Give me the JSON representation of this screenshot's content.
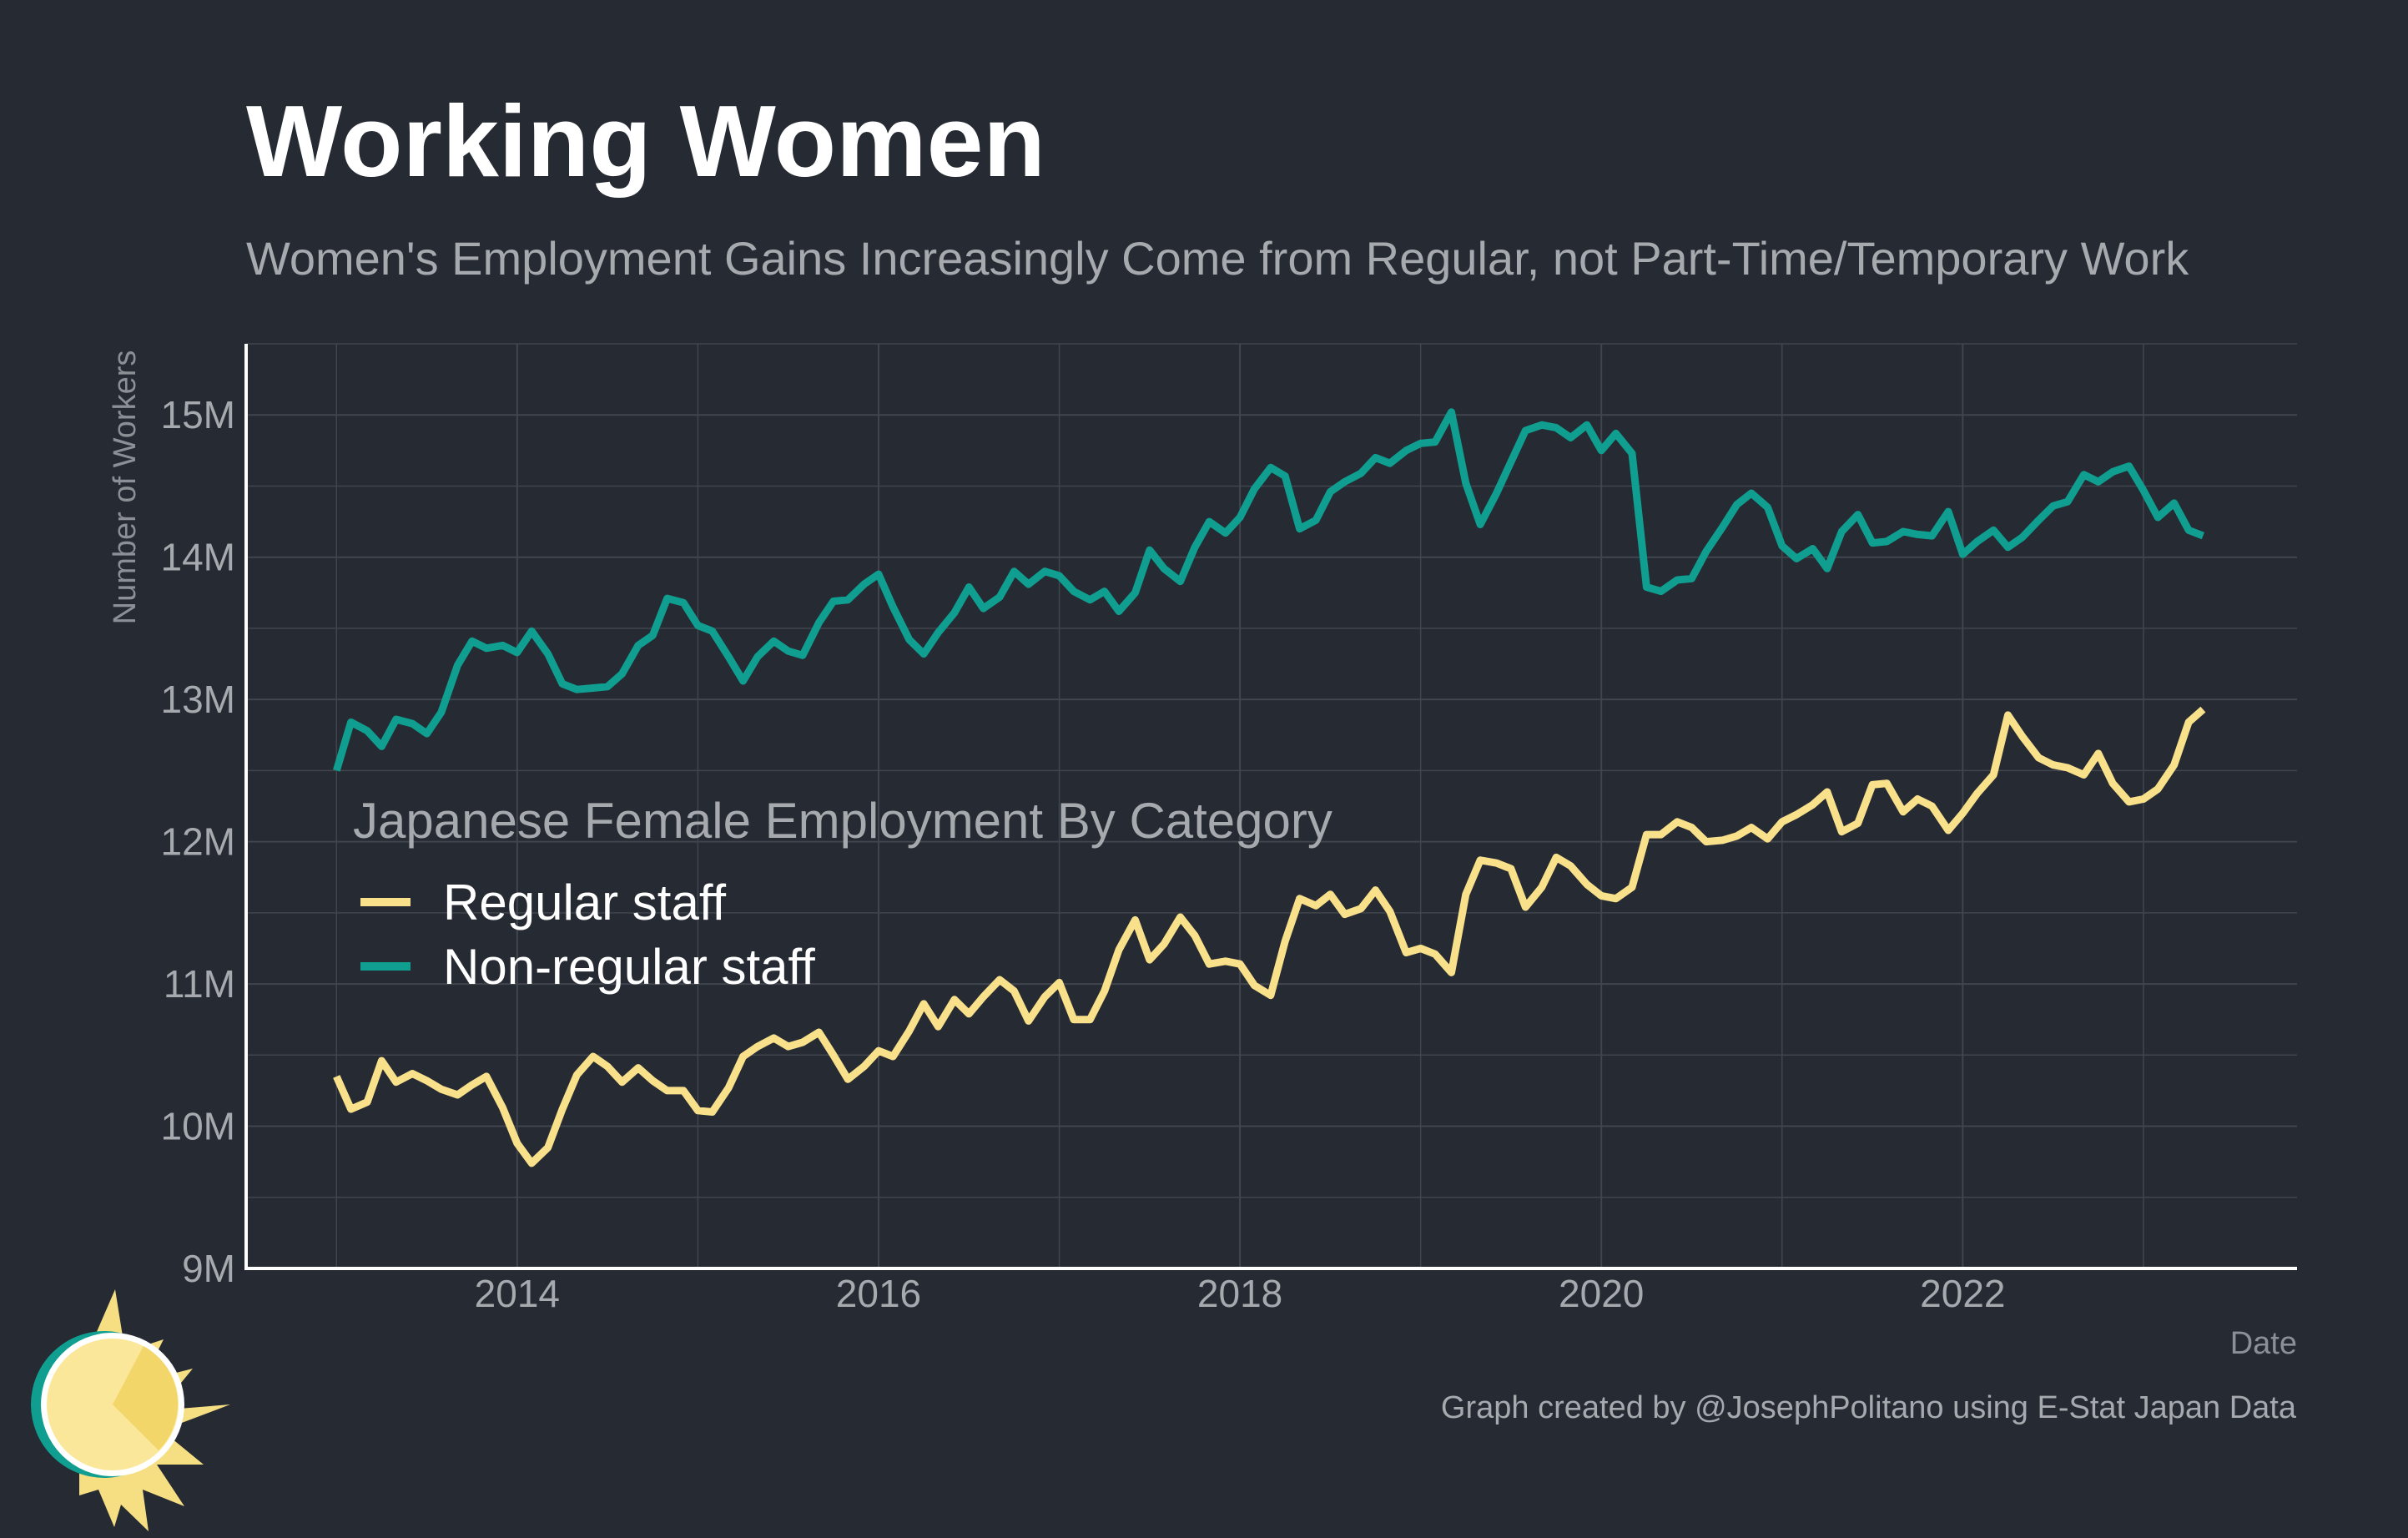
{
  "title": "Working Women",
  "subtitle": "Women's Employment Gains Increasingly Come from Regular, not Part-Time/Temporary Work",
  "caption": "Graph created by @JosephPolitano using E-Stat Japan Data",
  "colors": {
    "background": "#252a33",
    "regular": "#f9e08a",
    "nonregular": "#0f9e8f",
    "grid": "#41454d",
    "axis": "#ffffff"
  },
  "logo": "sun-logo-icon",
  "chart_data": {
    "type": "line",
    "xlabel": "Date",
    "ylabel": "Number of Workers",
    "xlim": [
      2012.5,
      2023.85
    ],
    "ylim": [
      9,
      15.5
    ],
    "x_ticks": [
      2014,
      2016,
      2018,
      2020,
      2022
    ],
    "x_tick_labels": [
      "2014",
      "2016",
      "2018",
      "2020",
      "2022"
    ],
    "y_ticks": [
      9,
      10,
      11,
      12,
      13,
      14,
      15
    ],
    "y_tick_labels": [
      "9M",
      "10M",
      "11M",
      "12M",
      "13M",
      "14M",
      "15M"
    ],
    "grid": true,
    "legend": {
      "title": "Japanese Female Employment By Category",
      "position": "center-left"
    },
    "series": [
      {
        "name": "Regular staff",
        "color": "#f9e08a",
        "points": [
          [
            2013.0,
            10.35
          ],
          [
            2013.08,
            10.12
          ],
          [
            2013.17,
            10.17
          ],
          [
            2013.25,
            10.46
          ],
          [
            2013.33,
            10.31
          ],
          [
            2013.42,
            10.37
          ],
          [
            2013.5,
            10.32
          ],
          [
            2013.58,
            10.26
          ],
          [
            2013.67,
            10.22
          ],
          [
            2013.75,
            10.29
          ],
          [
            2013.83,
            10.35
          ],
          [
            2013.92,
            10.13
          ],
          [
            2014.0,
            9.88
          ],
          [
            2014.08,
            9.74
          ],
          [
            2014.17,
            9.85
          ],
          [
            2014.25,
            10.12
          ],
          [
            2014.33,
            10.36
          ],
          [
            2014.42,
            10.49
          ],
          [
            2014.5,
            10.42
          ],
          [
            2014.58,
            10.31
          ],
          [
            2014.67,
            10.41
          ],
          [
            2014.75,
            10.32
          ],
          [
            2014.83,
            10.25
          ],
          [
            2014.92,
            10.25
          ],
          [
            2015.0,
            10.11
          ],
          [
            2015.08,
            10.1
          ],
          [
            2015.17,
            10.27
          ],
          [
            2015.25,
            10.49
          ],
          [
            2015.33,
            10.56
          ],
          [
            2015.42,
            10.62
          ],
          [
            2015.5,
            10.56
          ],
          [
            2015.58,
            10.59
          ],
          [
            2015.67,
            10.66
          ],
          [
            2015.75,
            10.5
          ],
          [
            2015.83,
            10.33
          ],
          [
            2015.92,
            10.42
          ],
          [
            2016.0,
            10.53
          ],
          [
            2016.08,
            10.49
          ],
          [
            2016.17,
            10.67
          ],
          [
            2016.25,
            10.86
          ],
          [
            2016.33,
            10.7
          ],
          [
            2016.42,
            10.89
          ],
          [
            2016.5,
            10.79
          ],
          [
            2016.58,
            10.91
          ],
          [
            2016.67,
            11.03
          ],
          [
            2016.75,
            10.95
          ],
          [
            2016.83,
            10.74
          ],
          [
            2016.92,
            10.91
          ],
          [
            2017.0,
            11.01
          ],
          [
            2017.08,
            10.75
          ],
          [
            2017.17,
            10.75
          ],
          [
            2017.25,
            10.95
          ],
          [
            2017.33,
            11.24
          ],
          [
            2017.42,
            11.45
          ],
          [
            2017.5,
            11.17
          ],
          [
            2017.58,
            11.28
          ],
          [
            2017.67,
            11.47
          ],
          [
            2017.75,
            11.34
          ],
          [
            2017.83,
            11.14
          ],
          [
            2017.92,
            11.16
          ],
          [
            2018.0,
            11.14
          ],
          [
            2018.08,
            10.99
          ],
          [
            2018.17,
            10.92
          ],
          [
            2018.25,
            11.3
          ],
          [
            2018.33,
            11.6
          ],
          [
            2018.42,
            11.55
          ],
          [
            2018.5,
            11.63
          ],
          [
            2018.58,
            11.49
          ],
          [
            2018.67,
            11.53
          ],
          [
            2018.75,
            11.66
          ],
          [
            2018.83,
            11.51
          ],
          [
            2018.92,
            11.22
          ],
          [
            2019.0,
            11.25
          ],
          [
            2019.08,
            11.21
          ],
          [
            2019.17,
            11.08
          ],
          [
            2019.25,
            11.63
          ],
          [
            2019.33,
            11.87
          ],
          [
            2019.42,
            11.85
          ],
          [
            2019.5,
            11.81
          ],
          [
            2019.58,
            11.54
          ],
          [
            2019.67,
            11.68
          ],
          [
            2019.75,
            11.89
          ],
          [
            2019.83,
            11.83
          ],
          [
            2019.92,
            11.7
          ],
          [
            2020.0,
            11.62
          ],
          [
            2020.08,
            11.6
          ],
          [
            2020.17,
            11.68
          ],
          [
            2020.25,
            12.05
          ],
          [
            2020.33,
            12.05
          ],
          [
            2020.42,
            12.14
          ],
          [
            2020.5,
            12.1
          ],
          [
            2020.58,
            12.0
          ],
          [
            2020.67,
            12.01
          ],
          [
            2020.75,
            12.04
          ],
          [
            2020.83,
            12.1
          ],
          [
            2020.92,
            12.02
          ],
          [
            2021.0,
            12.14
          ],
          [
            2021.08,
            12.19
          ],
          [
            2021.17,
            12.26
          ],
          [
            2021.25,
            12.35
          ],
          [
            2021.33,
            12.07
          ],
          [
            2021.42,
            12.13
          ],
          [
            2021.5,
            12.4
          ],
          [
            2021.58,
            12.41
          ],
          [
            2021.67,
            12.21
          ],
          [
            2021.75,
            12.3
          ],
          [
            2021.83,
            12.25
          ],
          [
            2021.92,
            12.08
          ],
          [
            2022.0,
            12.2
          ],
          [
            2022.08,
            12.34
          ],
          [
            2022.17,
            12.47
          ],
          [
            2022.25,
            12.89
          ],
          [
            2022.33,
            12.74
          ],
          [
            2022.42,
            12.59
          ],
          [
            2022.5,
            12.54
          ],
          [
            2022.58,
            12.52
          ],
          [
            2022.67,
            12.47
          ],
          [
            2022.75,
            12.62
          ],
          [
            2022.83,
            12.41
          ],
          [
            2022.92,
            12.28
          ],
          [
            2023.0,
            12.3
          ],
          [
            2023.08,
            12.37
          ],
          [
            2023.17,
            12.54
          ],
          [
            2023.25,
            12.84
          ],
          [
            2023.33,
            12.93
          ]
        ]
      },
      {
        "name": "Non-regular staff",
        "color": "#0f9e8f",
        "points": [
          [
            2013.0,
            12.5
          ],
          [
            2013.08,
            12.84
          ],
          [
            2013.17,
            12.78
          ],
          [
            2013.25,
            12.67
          ],
          [
            2013.33,
            12.86
          ],
          [
            2013.42,
            12.83
          ],
          [
            2013.5,
            12.76
          ],
          [
            2013.58,
            12.91
          ],
          [
            2013.67,
            13.24
          ],
          [
            2013.75,
            13.41
          ],
          [
            2013.83,
            13.36
          ],
          [
            2013.92,
            13.38
          ],
          [
            2014.0,
            13.33
          ],
          [
            2014.08,
            13.48
          ],
          [
            2014.17,
            13.32
          ],
          [
            2014.25,
            13.11
          ],
          [
            2014.33,
            13.07
          ],
          [
            2014.42,
            13.08
          ],
          [
            2014.5,
            13.09
          ],
          [
            2014.58,
            13.18
          ],
          [
            2014.67,
            13.38
          ],
          [
            2014.75,
            13.45
          ],
          [
            2014.83,
            13.71
          ],
          [
            2014.92,
            13.68
          ],
          [
            2015.0,
            13.52
          ],
          [
            2015.08,
            13.48
          ],
          [
            2015.17,
            13.3
          ],
          [
            2015.25,
            13.13
          ],
          [
            2015.33,
            13.3
          ],
          [
            2015.42,
            13.41
          ],
          [
            2015.5,
            13.34
          ],
          [
            2015.58,
            13.31
          ],
          [
            2015.67,
            13.54
          ],
          [
            2015.75,
            13.69
          ],
          [
            2015.83,
            13.7
          ],
          [
            2015.92,
            13.81
          ],
          [
            2016.0,
            13.88
          ],
          [
            2016.08,
            13.65
          ],
          [
            2016.17,
            13.42
          ],
          [
            2016.25,
            13.32
          ],
          [
            2016.33,
            13.47
          ],
          [
            2016.42,
            13.61
          ],
          [
            2016.5,
            13.79
          ],
          [
            2016.58,
            13.64
          ],
          [
            2016.67,
            13.72
          ],
          [
            2016.75,
            13.9
          ],
          [
            2016.83,
            13.81
          ],
          [
            2016.92,
            13.9
          ],
          [
            2017.0,
            13.87
          ],
          [
            2017.08,
            13.76
          ],
          [
            2017.17,
            13.7
          ],
          [
            2017.25,
            13.76
          ],
          [
            2017.33,
            13.62
          ],
          [
            2017.42,
            13.75
          ],
          [
            2017.5,
            14.05
          ],
          [
            2017.58,
            13.92
          ],
          [
            2017.67,
            13.83
          ],
          [
            2017.75,
            14.07
          ],
          [
            2017.83,
            14.25
          ],
          [
            2017.92,
            14.17
          ],
          [
            2018.0,
            14.28
          ],
          [
            2018.08,
            14.48
          ],
          [
            2018.17,
            14.63
          ],
          [
            2018.25,
            14.57
          ],
          [
            2018.33,
            14.2
          ],
          [
            2018.42,
            14.26
          ],
          [
            2018.5,
            14.46
          ],
          [
            2018.58,
            14.53
          ],
          [
            2018.67,
            14.59
          ],
          [
            2018.75,
            14.7
          ],
          [
            2018.83,
            14.66
          ],
          [
            2018.92,
            14.75
          ],
          [
            2019.0,
            14.8
          ],
          [
            2019.08,
            14.81
          ],
          [
            2019.17,
            15.02
          ],
          [
            2019.25,
            14.52
          ],
          [
            2019.33,
            14.23
          ],
          [
            2019.42,
            14.45
          ],
          [
            2019.5,
            14.67
          ],
          [
            2019.58,
            14.89
          ],
          [
            2019.67,
            14.93
          ],
          [
            2019.75,
            14.91
          ],
          [
            2019.83,
            14.84
          ],
          [
            2019.92,
            14.93
          ],
          [
            2020.0,
            14.75
          ],
          [
            2020.08,
            14.87
          ],
          [
            2020.17,
            14.73
          ],
          [
            2020.25,
            13.79
          ],
          [
            2020.33,
            13.76
          ],
          [
            2020.42,
            13.84
          ],
          [
            2020.5,
            13.85
          ],
          [
            2020.58,
            14.04
          ],
          [
            2020.67,
            14.21
          ],
          [
            2020.75,
            14.37
          ],
          [
            2020.83,
            14.45
          ],
          [
            2020.92,
            14.35
          ],
          [
            2021.0,
            14.08
          ],
          [
            2021.08,
            13.99
          ],
          [
            2021.17,
            14.06
          ],
          [
            2021.25,
            13.92
          ],
          [
            2021.33,
            14.18
          ],
          [
            2021.42,
            14.3
          ],
          [
            2021.5,
            14.1
          ],
          [
            2021.58,
            14.11
          ],
          [
            2021.67,
            14.18
          ],
          [
            2021.75,
            14.16
          ],
          [
            2021.83,
            14.15
          ],
          [
            2021.92,
            14.32
          ],
          [
            2022.0,
            14.02
          ],
          [
            2022.08,
            14.11
          ],
          [
            2022.17,
            14.19
          ],
          [
            2022.25,
            14.07
          ],
          [
            2022.33,
            14.14
          ],
          [
            2022.42,
            14.26
          ],
          [
            2022.5,
            14.36
          ],
          [
            2022.58,
            14.39
          ],
          [
            2022.67,
            14.58
          ],
          [
            2022.75,
            14.53
          ],
          [
            2022.83,
            14.6
          ],
          [
            2022.92,
            14.64
          ],
          [
            2023.0,
            14.47
          ],
          [
            2023.08,
            14.28
          ],
          [
            2023.17,
            14.38
          ],
          [
            2023.25,
            14.19
          ],
          [
            2023.33,
            14.15
          ]
        ]
      }
    ]
  }
}
